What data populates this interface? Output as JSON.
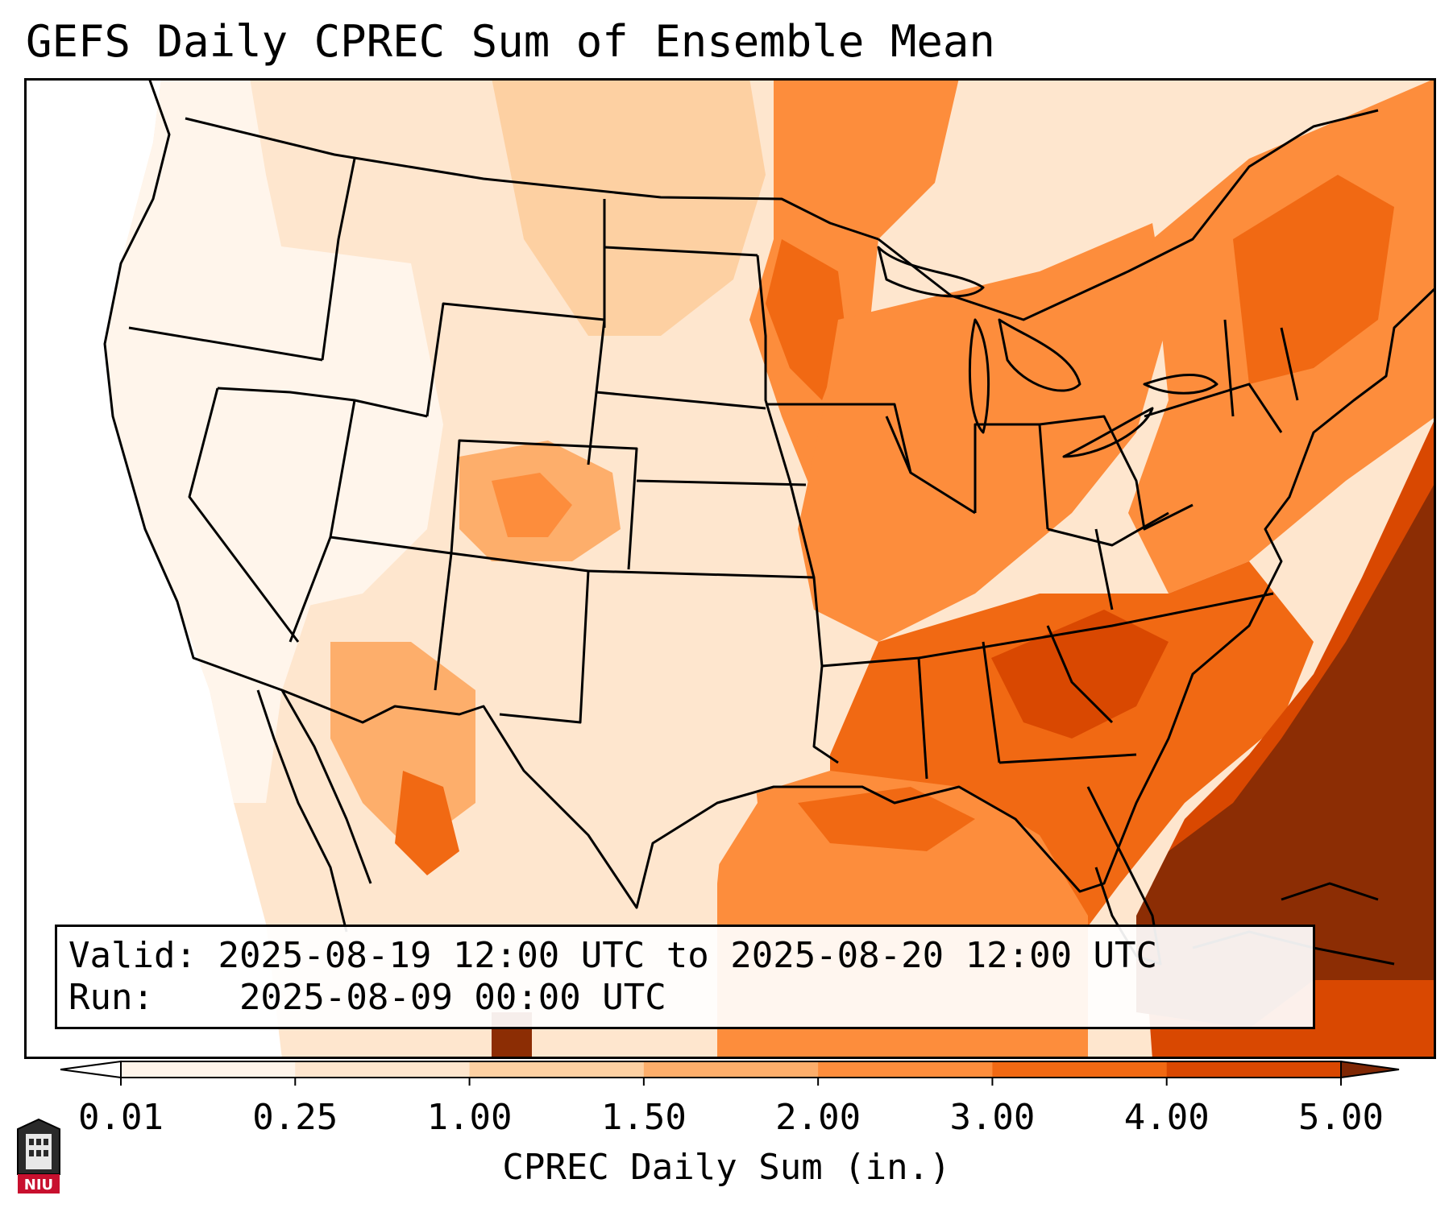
{
  "title": "GEFS Daily CPREC Sum of Ensemble Mean",
  "info": {
    "valid_label": "Valid:",
    "valid_value": "2025-08-19 12:00 UTC to 2025-08-20 12:00 UTC",
    "run_label": "Run:",
    "run_value": "2025-08-09 00:00 UTC"
  },
  "colorbar": {
    "label": "CPREC Daily Sum (in.)",
    "ticks": [
      "0.01",
      "0.25",
      "1.00",
      "1.50",
      "2.00",
      "3.00",
      "4.00",
      "5.00"
    ],
    "colors": [
      "#fff5eb",
      "#fee6ce",
      "#fdd0a2",
      "#fdae6b",
      "#fd8d3c",
      "#f16913",
      "#d94801",
      "#8c2d04"
    ],
    "under_color": "#ffffff",
    "over_color": "#7f2704"
  },
  "map": {
    "region": "Contiguous United States",
    "land_outline_color": "#000000"
  },
  "logo": {
    "text": "NIU",
    "color": "#c8102e"
  }
}
